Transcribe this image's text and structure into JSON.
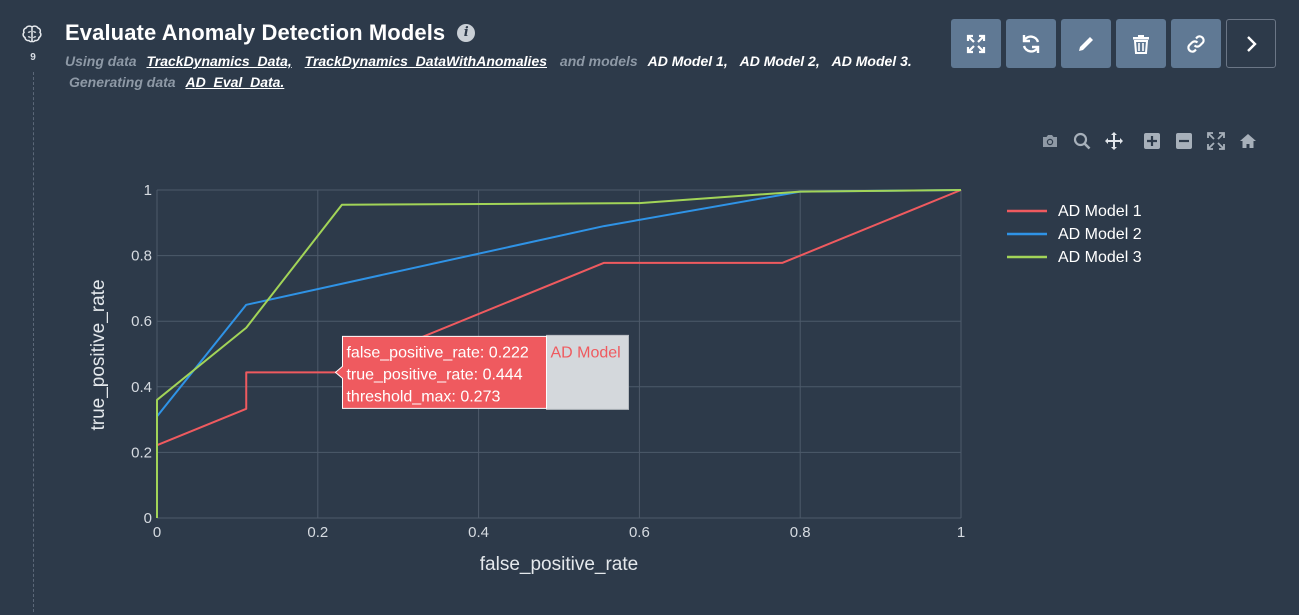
{
  "header": {
    "step": "9",
    "title": "Evaluate Anomaly Detection Models",
    "using_prefix": "Using data",
    "datasets": [
      "TrackDynamics_Data,",
      "TrackDynamics_DataWithAnomalies"
    ],
    "models_prefix": "and models",
    "models": [
      "AD Model 1,",
      "AD Model 2,",
      "AD Model 3."
    ],
    "generating_prefix": "Generating data",
    "output": "AD_Eval_Data."
  },
  "toolbar": {
    "buttons": [
      "expand-icon",
      "refresh-icon",
      "pencil-icon",
      "trash-icon",
      "link-icon",
      "chevron-right-icon"
    ]
  },
  "modebar": {
    "buttons": [
      "camera-icon",
      "zoom-icon",
      "pan-icon",
      "zoom-in-icon",
      "zoom-out-icon",
      "autoscale-icon",
      "home-icon"
    ]
  },
  "chart_data": {
    "type": "line",
    "xlabel": "false_positive_rate",
    "ylabel": "true_positive_rate",
    "xlim": [
      0,
      1
    ],
    "ylim": [
      0,
      1
    ],
    "xticks": [
      "0",
      "0.2",
      "0.4",
      "0.6",
      "0.8",
      "1"
    ],
    "yticks": [
      "0",
      "0.2",
      "0.4",
      "0.6",
      "0.8",
      "1"
    ],
    "grid": true,
    "legend_position": "right",
    "series": [
      {
        "name": "AD Model 1",
        "color": "#ef5a5f",
        "x": [
          0,
          0,
          0.111,
          0.111,
          0.222,
          0.556,
          0.778,
          1
        ],
        "y": [
          0,
          0.222,
          0.333,
          0.444,
          0.444,
          0.778,
          0.778,
          1
        ]
      },
      {
        "name": "AD Model 2",
        "color": "#2f93e6",
        "x": [
          0,
          0,
          0.111,
          0.556,
          0.8,
          1
        ],
        "y": [
          0,
          0.31,
          0.65,
          0.89,
          0.995,
          1
        ]
      },
      {
        "name": "AD Model 3",
        "color": "#a2d458",
        "x": [
          0,
          0,
          0.111,
          0.23,
          0.6,
          0.8,
          1
        ],
        "y": [
          0,
          0.36,
          0.58,
          0.955,
          0.96,
          0.995,
          1
        ]
      }
    ],
    "hover": {
      "series": "AD Model 1",
      "x": 0.222,
      "y": 0.444,
      "lines": [
        "false_positive_rate: 0.222",
        "true_positive_rate: 0.444",
        "threshold_max: 0.273"
      ],
      "name_label": "AD Model"
    }
  }
}
